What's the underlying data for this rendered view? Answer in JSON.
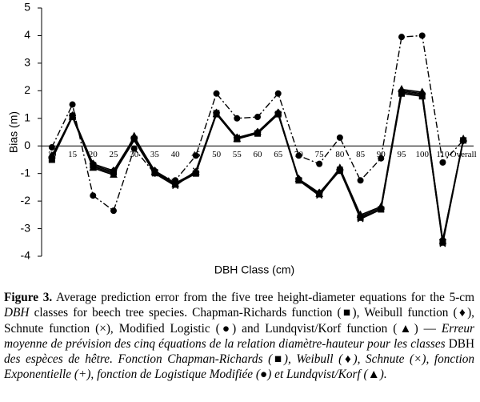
{
  "chart_data": {
    "type": "line",
    "ylabel": "Bias (m)",
    "xlabel": "DBH Class (cm)",
    "categories": [
      "10",
      "15",
      "20",
      "25",
      "30",
      "35",
      "40",
      "45",
      "50",
      "55",
      "60",
      "65",
      "70",
      "75",
      "80",
      "85",
      "90",
      "95",
      "100",
      "110",
      "Overall"
    ],
    "series": [
      {
        "color": "#000000",
        "dash": "8 3 2 3",
        "marker": "circle",
        "values": [
          -0.05,
          1.5,
          -1.8,
          -2.35,
          -0.1,
          -1.0,
          -1.25,
          -0.35,
          1.9,
          1.0,
          1.05,
          1.9,
          -0.35,
          -0.65,
          0.3,
          -1.25,
          -0.45,
          3.95,
          4.0,
          -0.6,
          0.2
        ]
      },
      {
        "color": "#000000",
        "dash": "none",
        "marker": "square",
        "values": [
          -0.5,
          1.05,
          -0.7,
          -0.95,
          0.25,
          -0.95,
          -1.4,
          -1.0,
          1.15,
          0.25,
          0.45,
          1.15,
          -1.25,
          -1.75,
          -0.9,
          -2.6,
          -2.3,
          1.9,
          1.8,
          -3.5,
          0.2
        ]
      },
      {
        "color": "#000000",
        "dash": "none",
        "marker": "diamond",
        "values": [
          -0.4,
          1.1,
          -0.65,
          -0.9,
          0.3,
          -0.9,
          -1.35,
          -0.95,
          1.2,
          0.3,
          0.5,
          1.2,
          -1.2,
          -1.7,
          -0.85,
          -2.55,
          -2.25,
          2.0,
          1.9,
          -3.4,
          0.2
        ]
      },
      {
        "color": "#000000",
        "dash": "none",
        "marker": "cross",
        "values": [
          -0.45,
          1.1,
          -0.75,
          -1.0,
          0.2,
          -1.0,
          -1.45,
          -0.9,
          1.2,
          0.3,
          0.45,
          1.15,
          -1.25,
          -1.8,
          -0.85,
          -2.65,
          -2.3,
          1.95,
          1.85,
          -3.55,
          0.2
        ]
      },
      {
        "color": "#000000",
        "dash": "none",
        "marker": "triangle",
        "values": [
          -0.35,
          1.05,
          -0.8,
          -1.05,
          0.35,
          -0.95,
          -1.4,
          -0.95,
          1.15,
          0.25,
          0.5,
          1.2,
          -1.2,
          -1.75,
          -0.8,
          -2.5,
          -2.2,
          2.05,
          1.95,
          -3.45,
          0.25
        ]
      }
    ],
    "ylim": [
      -4,
      5
    ],
    "yticks": [
      -4,
      -3,
      -2,
      -1,
      0,
      1,
      2,
      3,
      4,
      5
    ]
  },
  "caption": [
    "Figure 3.",
    " Average prediction error from the five tree height-diameter equations for the 5-cm ",
    "DBH",
    " classes for beech tree species. Chapman-Richards function (■), Weibull function (♦), Schnute function (×), Modified Logistic (●) and Lundqvist/Korf function (▲) — ",
    "Erreur moyenne de prévision des cinq équations de la relation diamètre-hauteur pour les classes ",
    "DBH",
    " des espèces de hêtre. Fonction Chapman-Richards (■), Weibull (♦), Schnute (×), fonction Exponentielle (+), fonction de Logistique Modifiée (●) et Lundqvist/Korf (▲)."
  ]
}
